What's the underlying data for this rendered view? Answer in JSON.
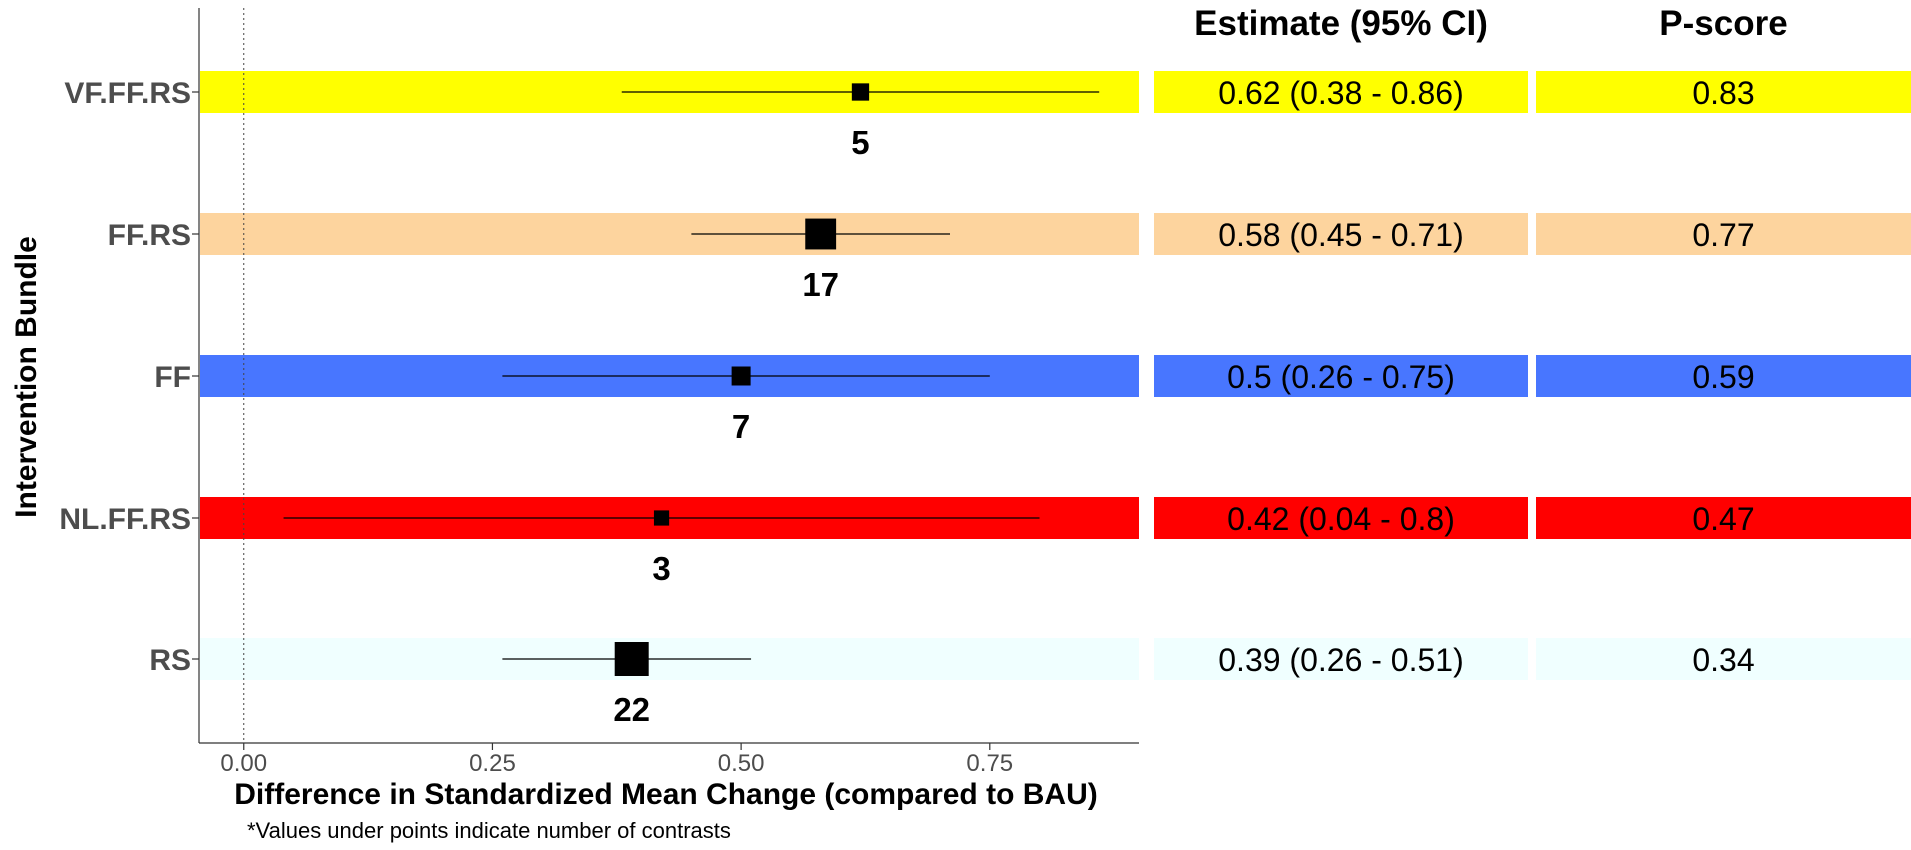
{
  "chart_data": {
    "type": "forest",
    "ylabel": "Intervention Bundle",
    "xlabel": "Difference in Standardized Mean Change (compared to BAU)",
    "xlim": [
      -0.045,
      0.9
    ],
    "xticks": [
      "0.00",
      "0.25",
      "0.50",
      "0.75"
    ],
    "reference_line": 0,
    "table_headers": [
      "Estimate (95% CI)",
      "P-score"
    ],
    "footnote": "*Values under points indicate number of contrasts",
    "rows": [
      {
        "label": "VF.FF.RS",
        "estimate": 0.62,
        "lower": 0.38,
        "upper": 0.86,
        "contrasts": 5,
        "ci_text": "0.62 (0.38 - 0.86)",
        "pscore": "0.83",
        "color": "#FFFF00"
      },
      {
        "label": "FF.RS",
        "estimate": 0.58,
        "lower": 0.45,
        "upper": 0.71,
        "contrasts": 17,
        "ci_text": "0.58 (0.45 - 0.71)",
        "pscore": "0.77",
        "color": "#FDD49E"
      },
      {
        "label": "FF",
        "estimate": 0.5,
        "lower": 0.26,
        "upper": 0.75,
        "contrasts": 7,
        "ci_text": "0.5 (0.26 - 0.75)",
        "pscore": "0.59",
        "color": "#4876FF"
      },
      {
        "label": "NL.FF.RS",
        "estimate": 0.42,
        "lower": 0.04,
        "upper": 0.8,
        "contrasts": 3,
        "ci_text": "0.42 (0.04 - 0.8)",
        "pscore": "0.47",
        "color": "#FF0000"
      },
      {
        "label": "RS",
        "estimate": 0.39,
        "lower": 0.26,
        "upper": 0.51,
        "contrasts": 22,
        "ci_text": "0.39 (0.26 - 0.51)",
        "pscore": "0.34",
        "color": "#F0FFFF"
      }
    ]
  }
}
